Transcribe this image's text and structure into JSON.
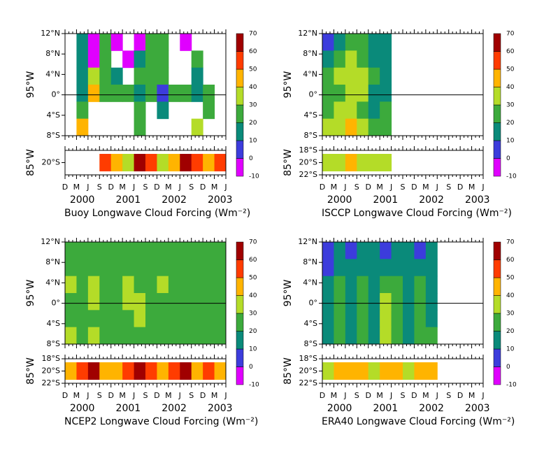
{
  "chart_data": [
    {
      "type": "contour",
      "title": "Buoy Longwave Cloud Forcing (Wm⁻²)",
      "ylabel": "95°W",
      "strip_ylabel": "85°W",
      "categories": [
        "D",
        "M",
        "J",
        "S",
        "D",
        "M",
        "J",
        "S",
        "D",
        "M",
        "J",
        "S",
        "D",
        "M",
        "J"
      ],
      "year_labels": [
        "2000",
        "2001",
        "2002",
        "2003"
      ],
      "ylim": [
        -8,
        12
      ],
      "yticks": [
        {
          "value": 12,
          "label": "12°N"
        },
        {
          "value": 8,
          "label": "8°N"
        },
        {
          "value": 4,
          "label": "4°N"
        },
        {
          "value": 0,
          "label": "0°"
        },
        {
          "value": -4,
          "label": "4°S"
        },
        {
          "value": -8,
          "label": "8°S"
        }
      ],
      "strip_ylim": [
        -22,
        -18
      ],
      "strip_yticks": [
        {
          "value": -20,
          "label": "20°S"
        }
      ],
      "levels": [
        -10,
        0,
        10,
        20,
        30,
        40,
        50,
        60,
        70
      ],
      "colors": [
        "#e000ff",
        "#3c3cdc",
        "#0a8a7a",
        "#3caa3c",
        "#b4dc28",
        "#ffb400",
        "#ff3c00",
        "#a00000"
      ],
      "z": [
        [
          null,
          15,
          -5,
          25,
          -5,
          null,
          -5,
          20,
          25,
          null,
          -5,
          null,
          null,
          null
        ],
        [
          null,
          15,
          -5,
          25,
          null,
          -5,
          15,
          20,
          25,
          null,
          null,
          20,
          null,
          null
        ],
        [
          null,
          10,
          35,
          25,
          15,
          null,
          20,
          25,
          20,
          null,
          null,
          15,
          null,
          null
        ],
        [
          null,
          15,
          40,
          20,
          25,
          20,
          15,
          25,
          5,
          20,
          20,
          15,
          20,
          null
        ],
        [
          null,
          20,
          null,
          null,
          null,
          null,
          25,
          null,
          15,
          null,
          null,
          null,
          20,
          null
        ],
        [
          null,
          40,
          null,
          null,
          null,
          null,
          25,
          null,
          null,
          null,
          null,
          35,
          null,
          null
        ]
      ],
      "strip_z": [
        null,
        null,
        null,
        55,
        45,
        35,
        65,
        55,
        35,
        45,
        60,
        55,
        45,
        55
      ]
    },
    {
      "type": "contour",
      "title": "ISCCP Longwave Cloud Forcing (Wm⁻²)",
      "ylabel": "95°W",
      "strip_ylabel": "85°W",
      "categories": [
        "D",
        "M",
        "J",
        "S",
        "D",
        "M",
        "J",
        "S",
        "D",
        "M",
        "J",
        "S",
        "D",
        "M",
        "J"
      ],
      "year_labels": [
        "2000",
        "2001",
        "2002",
        "2003"
      ],
      "ylim": [
        -8,
        12
      ],
      "yticks": [
        {
          "value": 12,
          "label": "12°N"
        },
        {
          "value": 8,
          "label": "8°N"
        },
        {
          "value": 4,
          "label": "4°N"
        },
        {
          "value": 0,
          "label": "0°"
        },
        {
          "value": -4,
          "label": "4°S"
        },
        {
          "value": -8,
          "label": "8°S"
        }
      ],
      "strip_ylim": [
        -22,
        -18
      ],
      "strip_yticks": [
        {
          "value": -18,
          "label": "18°S"
        },
        {
          "value": -20,
          "label": "20°S"
        },
        {
          "value": -22,
          "label": "22°S"
        }
      ],
      "levels": [
        -10,
        0,
        10,
        20,
        30,
        40,
        50,
        60,
        70
      ],
      "colors": [
        "#e000ff",
        "#3c3cdc",
        "#0a8a7a",
        "#3caa3c",
        "#b4dc28",
        "#ffb400",
        "#ff3c00",
        "#a00000"
      ],
      "z": [
        [
          5,
          15,
          25,
          20,
          15,
          15,
          null,
          null,
          null,
          null,
          null,
          null,
          null,
          null
        ],
        [
          15,
          25,
          35,
          25,
          15,
          15,
          null,
          null,
          null,
          null,
          null,
          null,
          null,
          null
        ],
        [
          25,
          35,
          35,
          30,
          20,
          15,
          null,
          null,
          null,
          null,
          null,
          null,
          null,
          null
        ],
        [
          25,
          25,
          35,
          35,
          15,
          15,
          null,
          null,
          null,
          null,
          null,
          null,
          null,
          null
        ],
        [
          25,
          30,
          30,
          25,
          15,
          25,
          null,
          null,
          null,
          null,
          null,
          null,
          null,
          null
        ],
        [
          35,
          35,
          45,
          35,
          25,
          25,
          null,
          null,
          null,
          null,
          null,
          null,
          null,
          null
        ]
      ],
      "strip_z": [
        35,
        35,
        45,
        35,
        35,
        35,
        null,
        null,
        null,
        null,
        null,
        null,
        null,
        null
      ]
    },
    {
      "type": "contour",
      "title": "NCEP2 Longwave Cloud Forcing (Wm⁻²)",
      "ylabel": "95°W",
      "strip_ylabel": "85°W",
      "categories": [
        "D",
        "M",
        "J",
        "S",
        "D",
        "M",
        "J",
        "S",
        "D",
        "M",
        "J",
        "S",
        "D",
        "M",
        "J"
      ],
      "year_labels": [
        "2000",
        "2001",
        "2002",
        "2003"
      ],
      "ylim": [
        -8,
        12
      ],
      "yticks": [
        {
          "value": 12,
          "label": "12°N"
        },
        {
          "value": 8,
          "label": "8°N"
        },
        {
          "value": 4,
          "label": "4°N"
        },
        {
          "value": 0,
          "label": "0°"
        },
        {
          "value": -4,
          "label": "4°S"
        },
        {
          "value": -8,
          "label": "8°S"
        }
      ],
      "strip_ylim": [
        -22,
        -18
      ],
      "strip_yticks": [
        {
          "value": -18,
          "label": "18°S"
        },
        {
          "value": -20,
          "label": "20°S"
        },
        {
          "value": -22,
          "label": "22°S"
        }
      ],
      "levels": [
        -10,
        0,
        10,
        20,
        30,
        40,
        50,
        60,
        70
      ],
      "colors": [
        "#e000ff",
        "#3c3cdc",
        "#0a8a7a",
        "#3caa3c",
        "#b4dc28",
        "#ffb400",
        "#ff3c00",
        "#a00000"
      ],
      "z": [
        [
          25,
          25,
          25,
          25,
          25,
          25,
          25,
          25,
          25,
          25,
          25,
          25,
          25,
          25
        ],
        [
          25,
          25,
          25,
          25,
          25,
          25,
          25,
          25,
          25,
          25,
          25,
          25,
          25,
          25
        ],
        [
          35,
          25,
          35,
          25,
          25,
          35,
          25,
          25,
          35,
          25,
          25,
          25,
          25,
          25
        ],
        [
          25,
          25,
          35,
          25,
          25,
          35,
          35,
          25,
          25,
          25,
          25,
          25,
          25,
          25
        ],
        [
          25,
          25,
          25,
          25,
          25,
          25,
          35,
          25,
          25,
          25,
          25,
          25,
          25,
          25
        ],
        [
          35,
          25,
          35,
          25,
          25,
          25,
          25,
          25,
          25,
          25,
          25,
          25,
          25,
          25
        ]
      ],
      "strip_z": [
        45,
        55,
        65,
        45,
        45,
        55,
        65,
        55,
        45,
        55,
        65,
        45,
        55,
        45
      ]
    },
    {
      "type": "contour",
      "title": "ERA40 Longwave Cloud Forcing (Wm⁻²)",
      "ylabel": "95°W",
      "strip_ylabel": "85°W",
      "categories": [
        "D",
        "M",
        "J",
        "S",
        "D",
        "M",
        "J",
        "S",
        "D",
        "M",
        "J",
        "S",
        "D",
        "M",
        "J"
      ],
      "year_labels": [
        "2000",
        "2001",
        "2002",
        "2003"
      ],
      "ylim": [
        -8,
        12
      ],
      "yticks": [
        {
          "value": 12,
          "label": "12°N"
        },
        {
          "value": 8,
          "label": "8°N"
        },
        {
          "value": 4,
          "label": "4°N"
        },
        {
          "value": 0,
          "label": "0°"
        },
        {
          "value": -4,
          "label": "4°S"
        },
        {
          "value": -8,
          "label": "8°S"
        }
      ],
      "strip_ylim": [
        -22,
        -18
      ],
      "strip_yticks": [
        {
          "value": -18,
          "label": "18°S"
        },
        {
          "value": -20,
          "label": "20°S"
        },
        {
          "value": -22,
          "label": "22°S"
        }
      ],
      "levels": [
        -10,
        0,
        10,
        20,
        30,
        40,
        50,
        60,
        70
      ],
      "colors": [
        "#e000ff",
        "#3c3cdc",
        "#0a8a7a",
        "#3caa3c",
        "#b4dc28",
        "#ffb400",
        "#ff3c00",
        "#a00000"
      ],
      "z": [
        [
          5,
          15,
          5,
          15,
          15,
          5,
          15,
          15,
          5,
          15,
          null,
          null,
          null,
          null
        ],
        [
          5,
          15,
          15,
          15,
          15,
          15,
          15,
          15,
          15,
          15,
          null,
          null,
          null,
          null
        ],
        [
          15,
          25,
          15,
          25,
          15,
          25,
          25,
          15,
          25,
          15,
          null,
          null,
          null,
          null
        ],
        [
          15,
          25,
          15,
          25,
          15,
          35,
          25,
          15,
          25,
          15,
          null,
          null,
          null,
          null
        ],
        [
          15,
          25,
          15,
          25,
          15,
          35,
          25,
          15,
          25,
          15,
          null,
          null,
          null,
          null
        ],
        [
          15,
          25,
          15,
          25,
          15,
          35,
          25,
          15,
          25,
          25,
          null,
          null,
          null,
          null
        ]
      ],
      "strip_z": [
        35,
        45,
        45,
        45,
        35,
        45,
        45,
        35,
        45,
        45,
        null,
        null,
        null,
        null
      ]
    }
  ]
}
